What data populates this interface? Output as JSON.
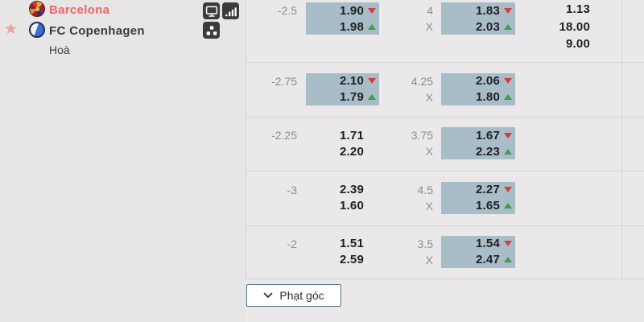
{
  "match": {
    "home_name": "Barcelona",
    "away_name": "FC Copenhagen",
    "draw_label": "Hoà"
  },
  "icons": {
    "favorite_star": "★",
    "toolbar": [
      {
        "name": "live-tv-icon"
      },
      {
        "name": "stats-bars-icon"
      },
      {
        "name": "lineup-icon"
      }
    ]
  },
  "odds_1x2": {
    "home": "1.13",
    "away": "18.00",
    "draw": "9.00"
  },
  "handicap_rows": [
    {
      "handicap": "-2.5",
      "home_odds": "1.90",
      "away_odds": "1.98",
      "home_trend": "down",
      "away_trend": "up",
      "highlighted": true,
      "line": "4",
      "draw_mark": "X",
      "line_home_odds": "1.83",
      "line_away_odds": "2.03",
      "line_home_trend": "down",
      "line_away_trend": "up",
      "line_highlighted": true
    },
    {
      "handicap": "-2.75",
      "home_odds": "2.10",
      "away_odds": "1.79",
      "home_trend": "down",
      "away_trend": "up",
      "highlighted": true,
      "line": "4.25",
      "draw_mark": "X",
      "line_home_odds": "2.06",
      "line_away_odds": "1.80",
      "line_home_trend": "down",
      "line_away_trend": "up",
      "line_highlighted": true
    },
    {
      "handicap": "-2.25",
      "home_odds": "1.71",
      "away_odds": "2.20",
      "home_trend": "",
      "away_trend": "",
      "highlighted": false,
      "line": "3.75",
      "draw_mark": "X",
      "line_home_odds": "1.67",
      "line_away_odds": "2.23",
      "line_home_trend": "down",
      "line_away_trend": "up",
      "line_highlighted": true
    },
    {
      "handicap": "-3",
      "home_odds": "2.39",
      "away_odds": "1.60",
      "home_trend": "",
      "away_trend": "",
      "highlighted": false,
      "line": "4.5",
      "draw_mark": "X",
      "line_home_odds": "2.27",
      "line_away_odds": "1.65",
      "line_home_trend": "down",
      "line_away_trend": "up",
      "line_highlighted": true
    },
    {
      "handicap": "-2",
      "home_odds": "1.51",
      "away_odds": "2.59",
      "home_trend": "",
      "away_trend": "",
      "highlighted": false,
      "line": "3.5",
      "draw_mark": "X",
      "line_home_odds": "1.54",
      "line_away_odds": "2.47",
      "line_home_trend": "down",
      "line_away_trend": "up",
      "line_highlighted": true
    }
  ],
  "market_button": {
    "label": "Phạt góc"
  },
  "colors": {
    "highlight_box": "#a9bdc9",
    "trend_down": "#d63c3c",
    "trend_up": "#3f9d4c",
    "home_team_text": "#ea6868",
    "favorite_star": "#e7a0a4",
    "panel_bg": "#e7e5e5",
    "odds_bg": "#eae8e8"
  }
}
